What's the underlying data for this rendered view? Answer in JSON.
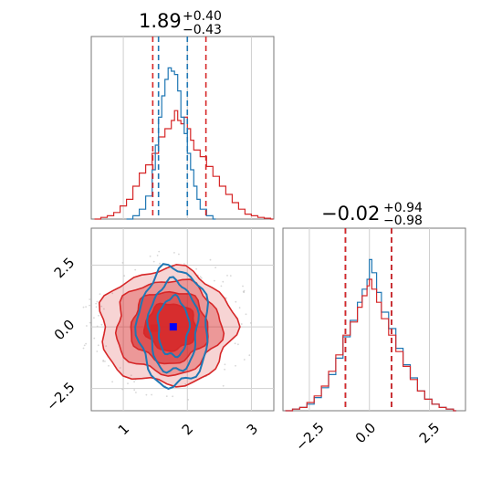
{
  "chart_data": {
    "type": "corner",
    "colors": {
      "red": "#d62728",
      "blue": "#1f77b4",
      "marker": "#0000ff",
      "grid": "#cfcfcf",
      "frame": "#777777"
    },
    "panels": [
      {
        "id": "hist_x",
        "type": "histogram",
        "title": {
          "median": "1.89",
          "plus": "+0.40",
          "minus": "−0.43"
        },
        "xlim": [
          0.5,
          3.35
        ],
        "ylim": [
          0,
          1.0
        ],
        "grid": true,
        "series": [
          {
            "name": "",
            "color": "#d62728",
            "bins_x": [
              0.55,
              0.65,
              0.75,
              0.85,
              0.95,
              1.05,
              1.15,
              1.25,
              1.35,
              1.45,
              1.55,
              1.65,
              1.75,
              1.8,
              1.85,
              1.9,
              1.95,
              2.0,
              2.05,
              2.1,
              2.2,
              2.3,
              2.4,
              2.5,
              2.6,
              2.7,
              2.8,
              2.9,
              3.0,
              3.1,
              3.2,
              3.3
            ],
            "values": [
              0.0,
              0.01,
              0.02,
              0.04,
              0.08,
              0.12,
              0.2,
              0.28,
              0.33,
              0.4,
              0.5,
              0.55,
              0.6,
              0.66,
              0.6,
              0.58,
              0.62,
              0.55,
              0.48,
              0.42,
              0.38,
              0.32,
              0.26,
              0.2,
              0.15,
              0.1,
              0.06,
              0.03,
              0.02,
              0.01,
              0.005,
              0.0
            ]
          },
          {
            "name": "",
            "color": "#1f77b4",
            "bins_x": [
              1.05,
              1.15,
              1.25,
              1.35,
              1.45,
              1.5,
              1.55,
              1.6,
              1.65,
              1.7,
              1.75,
              1.8,
              1.85,
              1.9,
              1.95,
              2.0,
              2.05,
              2.1,
              2.15,
              2.2,
              2.3,
              2.4
            ],
            "values": [
              0.0,
              0.02,
              0.06,
              0.14,
              0.3,
              0.45,
              0.62,
              0.75,
              0.85,
              0.92,
              0.9,
              0.88,
              0.78,
              0.62,
              0.52,
              0.4,
              0.3,
              0.2,
              0.12,
              0.06,
              0.02,
              0.0
            ]
          }
        ],
        "vlines": [
          {
            "x": 1.46,
            "color": "#d62728"
          },
          {
            "x": 1.55,
            "color": "#1f77b4"
          },
          {
            "x": 2.0,
            "color": "#1f77b4"
          },
          {
            "x": 2.29,
            "color": "#d62728"
          }
        ]
      },
      {
        "id": "joint",
        "type": "contour",
        "xlim": [
          0.5,
          3.35
        ],
        "ylim": [
          -3.4,
          4.0
        ],
        "grid": true,
        "xticks": [
          "1",
          "2",
          "3"
        ],
        "xtick_values": [
          1,
          2,
          3
        ],
        "yticks": [
          "2.5",
          "0.0",
          "−2.5"
        ],
        "ytick_values": [
          2.5,
          0.0,
          -2.5
        ],
        "center": {
          "x": 1.78,
          "y": 0.0
        },
        "red_center": {
          "x": 1.48,
          "y": -0.05
        },
        "red_contours": [
          {
            "cx": 1.68,
            "cy": 0.0,
            "rx": 1.05,
            "ry": 2.35,
            "opacity": 0.2
          },
          {
            "cx": 1.7,
            "cy": 0.0,
            "rx": 0.82,
            "ry": 1.9,
            "opacity": 0.35
          },
          {
            "cx": 1.72,
            "cy": 0.0,
            "rx": 0.6,
            "ry": 1.45,
            "opacity": 0.6
          },
          {
            "cx": 1.74,
            "cy": 0.0,
            "rx": 0.4,
            "ry": 0.95,
            "opacity": 0.85
          }
        ],
        "blue_contours": [
          {
            "cx": 1.78,
            "cy": 0.0,
            "rx": 0.55,
            "ry": 2.4
          },
          {
            "cx": 1.78,
            "cy": 0.0,
            "rx": 0.38,
            "ry": 1.85
          },
          {
            "cx": 1.78,
            "cy": 0.0,
            "rx": 0.24,
            "ry": 1.2
          }
        ]
      },
      {
        "id": "hist_y",
        "type": "histogram",
        "title": {
          "median": "−0.02",
          "plus": "+0.94",
          "minus": "−0.98"
        },
        "xlim": [
          -3.6,
          4.0
        ],
        "ylim": [
          0,
          1.0
        ],
        "grid": true,
        "xticks": [
          "−2.5",
          "0.0",
          "2.5"
        ],
        "xtick_values": [
          -2.5,
          0.0,
          2.5
        ],
        "series": [
          {
            "name": "",
            "color": "#1f77b4",
            "bins_x": [
              -3.5,
              -3.2,
              -2.9,
              -2.6,
              -2.3,
              -2.0,
              -1.7,
              -1.4,
              -1.1,
              -0.8,
              -0.5,
              -0.3,
              -0.1,
              0.0,
              0.1,
              0.3,
              0.5,
              0.8,
              1.1,
              1.4,
              1.7,
              2.0,
              2.3,
              2.6,
              2.9,
              3.2,
              3.5
            ],
            "values": [
              0.0,
              0.01,
              0.02,
              0.04,
              0.08,
              0.14,
              0.22,
              0.32,
              0.45,
              0.55,
              0.66,
              0.74,
              0.8,
              0.92,
              0.84,
              0.72,
              0.6,
              0.5,
              0.38,
              0.28,
              0.2,
              0.12,
              0.07,
              0.04,
              0.02,
              0.01,
              0.0
            ]
          },
          {
            "name": "",
            "color": "#d62728",
            "bins_x": [
              -3.5,
              -3.2,
              -2.9,
              -2.6,
              -2.3,
              -2.0,
              -1.7,
              -1.4,
              -1.1,
              -0.8,
              -0.5,
              -0.3,
              -0.1,
              0.0,
              0.1,
              0.3,
              0.5,
              0.8,
              1.1,
              1.4,
              1.7,
              2.0,
              2.3,
              2.6,
              2.9,
              3.2,
              3.5
            ],
            "values": [
              0.0,
              0.01,
              0.02,
              0.05,
              0.09,
              0.15,
              0.24,
              0.34,
              0.46,
              0.54,
              0.63,
              0.7,
              0.76,
              0.8,
              0.74,
              0.66,
              0.56,
              0.46,
              0.36,
              0.27,
              0.19,
              0.12,
              0.07,
              0.04,
              0.02,
              0.01,
              0.0
            ]
          }
        ],
        "vlines": [
          {
            "x": -1.0,
            "color": "#1f77b4"
          },
          {
            "x": -1.0,
            "color": "#d62728"
          },
          {
            "x": 0.92,
            "color": "#1f77b4"
          },
          {
            "x": 0.92,
            "color": "#d62728"
          }
        ]
      }
    ]
  }
}
